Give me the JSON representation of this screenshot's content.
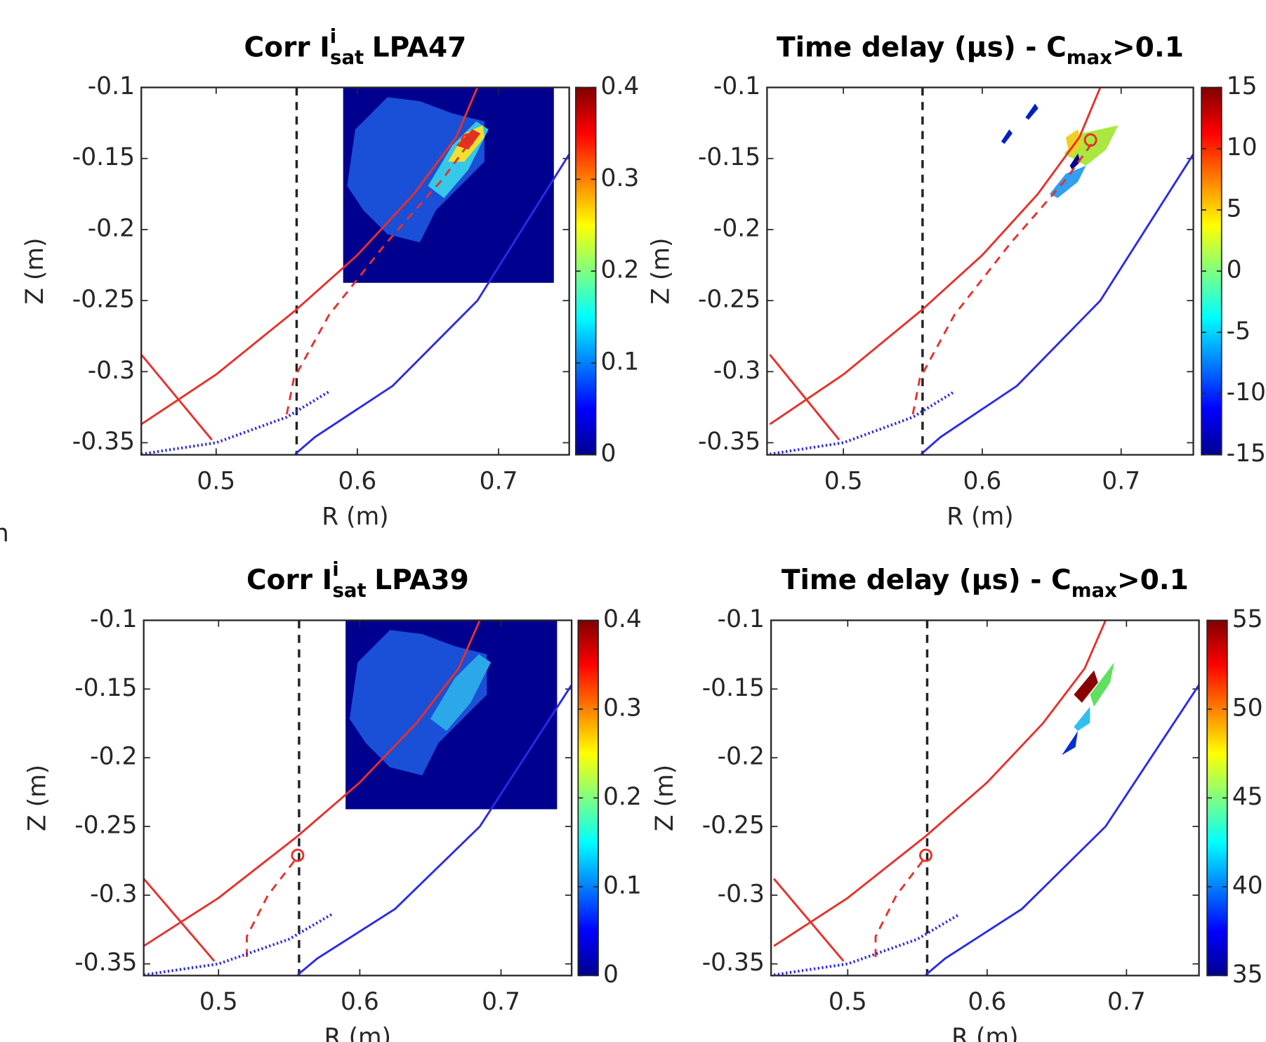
{
  "margin_text": "n",
  "chart_data": [
    {
      "type": "line",
      "title": {
        "text": "Corr I",
        "sup": "i",
        "sub": "sat",
        "rest": "LPA47"
      },
      "xlabel": "R (m)",
      "ylabel": "Z (m)",
      "xlim": [
        0.447,
        0.75
      ],
      "ylim": [
        -0.3585,
        -0.1
      ],
      "xticks": [
        0.5,
        0.6,
        0.7
      ],
      "yticks": [
        -0.1,
        -0.15,
        -0.2,
        -0.25,
        -0.3,
        -0.35
      ],
      "series": [
        {
          "color": "#e8302a",
          "style": "solid",
          "x": [
            0.447,
            0.5,
            0.556,
            0.6,
            0.64,
            0.67,
            0.685
          ],
          "values": [
            -0.337,
            -0.302,
            -0.257,
            -0.218,
            -0.175,
            -0.135,
            -0.1
          ]
        },
        {
          "color": "#e8302a",
          "style": "solid",
          "x": [
            0.447,
            0.497
          ],
          "values": [
            -0.288,
            -0.348
          ]
        },
        {
          "color": "#e8302a",
          "style": "dashed",
          "x": [
            0.55,
            0.555,
            0.58,
            0.62,
            0.66,
            0.68
          ],
          "values": [
            -0.33,
            -0.305,
            -0.26,
            -0.21,
            -0.165,
            -0.138
          ]
        },
        {
          "color": "#2a2ae8",
          "style": "solid",
          "x": [
            0.556,
            0.57,
            0.625,
            0.685,
            0.75
          ],
          "values": [
            -0.358,
            -0.346,
            -0.31,
            -0.25,
            -0.147
          ]
        },
        {
          "color": "#2a2ae8",
          "style": "dotted",
          "x": [
            0.447,
            0.5,
            0.55,
            0.58
          ],
          "values": [
            -0.358,
            -0.35,
            -0.332,
            -0.314
          ]
        }
      ],
      "markers": {
        "color": "#e8302a",
        "x": [
          0.678
        ],
        "values": [
          -0.137
        ]
      },
      "vline": 0.557,
      "colorbar": {
        "colormap": "jet",
        "clim": [
          0,
          0.4
        ],
        "cticks": [
          0,
          0.1,
          0.2,
          0.3,
          0.4
        ]
      }
    },
    {
      "type": "line",
      "title": {
        "text": "Time delay (μs) - C",
        "sub": "max",
        "rest": ">0.1"
      },
      "xlabel": "R (m)",
      "ylabel": "Z (m)",
      "xlim": [
        0.445,
        0.752
      ],
      "ylim": [
        -0.3585,
        -0.1
      ],
      "xticks": [
        0.5,
        0.6,
        0.7
      ],
      "yticks": [
        -0.1,
        -0.15,
        -0.2,
        -0.25,
        -0.3,
        -0.35
      ],
      "series": [
        {
          "color": "#e8302a",
          "style": "solid",
          "x": [
            0.447,
            0.5,
            0.556,
            0.6,
            0.64,
            0.67,
            0.685
          ],
          "values": [
            -0.337,
            -0.302,
            -0.257,
            -0.218,
            -0.175,
            -0.135,
            -0.1
          ]
        },
        {
          "color": "#e8302a",
          "style": "solid",
          "x": [
            0.447,
            0.497
          ],
          "values": [
            -0.288,
            -0.348
          ]
        },
        {
          "color": "#e8302a",
          "style": "dashed",
          "x": [
            0.55,
            0.555,
            0.58,
            0.62,
            0.66,
            0.68
          ],
          "values": [
            -0.33,
            -0.305,
            -0.26,
            -0.21,
            -0.165,
            -0.138
          ]
        },
        {
          "color": "#2a2ae8",
          "style": "solid",
          "x": [
            0.556,
            0.57,
            0.625,
            0.685,
            0.752
          ],
          "values": [
            -0.358,
            -0.346,
            -0.31,
            -0.25,
            -0.147
          ]
        },
        {
          "color": "#2a2ae8",
          "style": "dotted",
          "x": [
            0.447,
            0.5,
            0.55,
            0.58
          ],
          "values": [
            -0.358,
            -0.35,
            -0.332,
            -0.314
          ]
        }
      ],
      "markers": {
        "color": "#e8302a",
        "x": [
          0.678
        ],
        "values": [
          -0.137
        ]
      },
      "vline": 0.557,
      "colorbar": {
        "colormap": "jet",
        "clim": [
          -15,
          15
        ],
        "cticks": [
          -15,
          -10,
          -5,
          0,
          5,
          10,
          15
        ]
      }
    },
    {
      "type": "line",
      "title": {
        "text": "Corr I",
        "sup": "i",
        "sub": "sat",
        "rest": "LPA39"
      },
      "xlabel": "R (m)",
      "ylabel": "Z (m)",
      "xlim": [
        0.447,
        0.75
      ],
      "ylim": [
        -0.3585,
        -0.1
      ],
      "xticks": [
        0.5,
        0.6,
        0.7
      ],
      "yticks": [
        -0.1,
        -0.15,
        -0.2,
        -0.25,
        -0.3,
        -0.35
      ],
      "series": [
        {
          "color": "#e8302a",
          "style": "solid",
          "x": [
            0.447,
            0.5,
            0.556,
            0.6,
            0.64,
            0.67,
            0.685
          ],
          "values": [
            -0.337,
            -0.302,
            -0.257,
            -0.218,
            -0.175,
            -0.135,
            -0.1
          ]
        },
        {
          "color": "#e8302a",
          "style": "solid",
          "x": [
            0.447,
            0.497
          ],
          "values": [
            -0.288,
            -0.348
          ]
        },
        {
          "color": "#e8302a",
          "style": "dashed",
          "x": [
            0.52,
            0.52,
            0.535,
            0.556
          ],
          "values": [
            -0.345,
            -0.33,
            -0.3,
            -0.272
          ]
        },
        {
          "color": "#2a2ae8",
          "style": "solid",
          "x": [
            0.556,
            0.57,
            0.625,
            0.685,
            0.75
          ],
          "values": [
            -0.358,
            -0.346,
            -0.31,
            -0.25,
            -0.147
          ]
        },
        {
          "color": "#2a2ae8",
          "style": "dotted",
          "x": [
            0.447,
            0.5,
            0.55,
            0.58
          ],
          "values": [
            -0.358,
            -0.35,
            -0.332,
            -0.314
          ]
        }
      ],
      "markers": {
        "color": "#e8302a",
        "x": [
          0.556
        ],
        "values": [
          -0.271
        ]
      },
      "vline": 0.557,
      "colorbar": {
        "colormap": "jet",
        "clim": [
          0,
          0.4
        ],
        "cticks": [
          0,
          0.1,
          0.2,
          0.3,
          0.4
        ]
      }
    },
    {
      "type": "line",
      "title": {
        "text": "Time delay (μs) - C",
        "sub": "max",
        "rest": ">0.1"
      },
      "xlabel": "R (m)",
      "ylabel": "Z (m)",
      "xlim": [
        0.445,
        0.752
      ],
      "ylim": [
        -0.3585,
        -0.1
      ],
      "xticks": [
        0.5,
        0.6,
        0.7
      ],
      "yticks": [
        -0.1,
        -0.15,
        -0.2,
        -0.25,
        -0.3,
        -0.35
      ],
      "series": [
        {
          "color": "#e8302a",
          "style": "solid",
          "x": [
            0.447,
            0.5,
            0.556,
            0.6,
            0.64,
            0.67,
            0.685
          ],
          "values": [
            -0.337,
            -0.302,
            -0.257,
            -0.218,
            -0.175,
            -0.135,
            -0.1
          ]
        },
        {
          "color": "#e8302a",
          "style": "solid",
          "x": [
            0.447,
            0.497
          ],
          "values": [
            -0.288,
            -0.348
          ]
        },
        {
          "color": "#e8302a",
          "style": "dashed",
          "x": [
            0.52,
            0.52,
            0.535,
            0.556
          ],
          "values": [
            -0.345,
            -0.33,
            -0.3,
            -0.272
          ]
        },
        {
          "color": "#2a2ae8",
          "style": "solid",
          "x": [
            0.556,
            0.57,
            0.625,
            0.685,
            0.752
          ],
          "values": [
            -0.358,
            -0.346,
            -0.31,
            -0.25,
            -0.147
          ]
        },
        {
          "color": "#2a2ae8",
          "style": "dotted",
          "x": [
            0.447,
            0.5,
            0.55,
            0.58
          ],
          "values": [
            -0.358,
            -0.35,
            -0.332,
            -0.314
          ]
        }
      ],
      "markers": {
        "color": "#e8302a",
        "x": [
          0.556
        ],
        "values": [
          -0.271
        ]
      },
      "vline": 0.557,
      "colorbar": {
        "colormap": "jet",
        "clim": [
          35,
          55
        ],
        "cticks": [
          35,
          40,
          45,
          50,
          55
        ]
      }
    }
  ]
}
